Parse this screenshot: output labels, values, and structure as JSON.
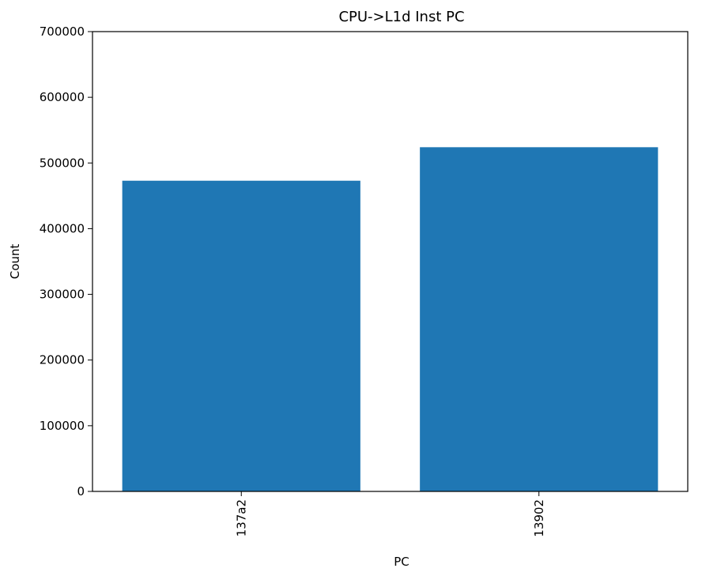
{
  "chart_data": {
    "type": "bar",
    "title": "CPU->L1d Inst PC",
    "xlabel": "PC",
    "ylabel": "Count",
    "categories": [
      "137a2",
      "13902"
    ],
    "values": [
      473000,
      524000
    ],
    "ylim": [
      0,
      700000
    ],
    "yticks": [
      0,
      100000,
      200000,
      300000,
      400000,
      500000,
      600000,
      700000
    ],
    "ytick_labels": [
      "0",
      "100000",
      "200000",
      "300000",
      "400000",
      "500000",
      "600000",
      "700000"
    ],
    "xtick_rotation": "vertical",
    "grid": false,
    "legend": "none",
    "bar_color": "#1f77b4"
  }
}
